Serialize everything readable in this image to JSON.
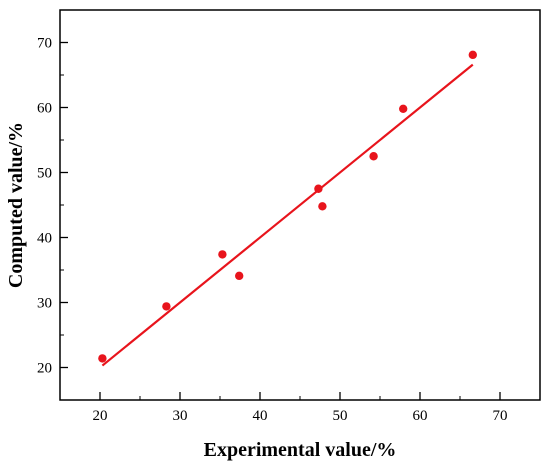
{
  "chart_data": {
    "type": "scatter",
    "title": "",
    "xlabel": "Experimental value/%",
    "ylabel": "Computed value/%",
    "xlim": [
      15,
      75
    ],
    "ylim": [
      15,
      75
    ],
    "xticks": [
      20,
      30,
      40,
      50,
      60,
      70
    ],
    "yticks": [
      20,
      30,
      40,
      50,
      60,
      70
    ],
    "grid": false,
    "series": [
      {
        "type": "scatter",
        "color": "#e8141c",
        "points": [
          {
            "x": 20.3,
            "y": 21.4
          },
          {
            "x": 28.3,
            "y": 29.4
          },
          {
            "x": 35.3,
            "y": 37.4
          },
          {
            "x": 37.4,
            "y": 34.1
          },
          {
            "x": 47.3,
            "y": 47.5
          },
          {
            "x": 47.8,
            "y": 44.8
          },
          {
            "x": 54.2,
            "y": 52.5
          },
          {
            "x": 57.9,
            "y": 59.8
          },
          {
            "x": 66.6,
            "y": 68.1
          }
        ]
      },
      {
        "type": "line",
        "color": "#e8141c",
        "points": [
          {
            "x": 20.3,
            "y": 20.3
          },
          {
            "x": 66.6,
            "y": 66.6
          }
        ]
      }
    ]
  }
}
